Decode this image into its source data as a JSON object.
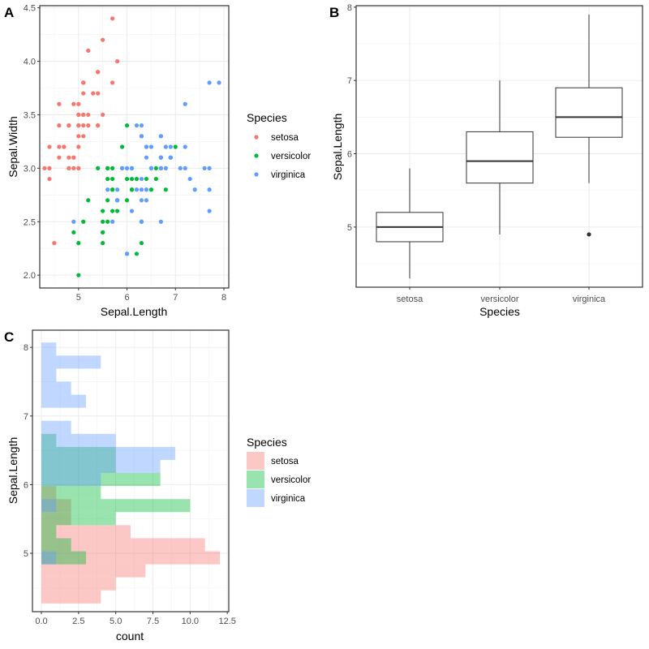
{
  "colors": {
    "setosa": "#F8766D",
    "versicolor": "#00BA38",
    "virginica": "#619CFF"
  },
  "chart_data": [
    {
      "panel": "A",
      "type": "scatter",
      "xlabel": "Sepal.Length",
      "ylabel": "Sepal.Width",
      "xlim": [
        4.2,
        8.1
      ],
      "ylim": [
        1.88,
        4.52
      ],
      "xticks": [
        5,
        6,
        7,
        8
      ],
      "yticks": [
        2.0,
        2.5,
        3.0,
        3.5,
        4.0,
        4.5
      ],
      "xtick_labels": [
        "5",
        "6",
        "7",
        "8"
      ],
      "ytick_labels": [
        "2.0",
        "2.5",
        "3.0",
        "3.5",
        "4.0",
        "4.5"
      ],
      "legend": {
        "title": "Species",
        "position": "right",
        "entries": [
          "setosa",
          "versicolor",
          "virginica"
        ]
      },
      "series": [
        {
          "name": "setosa",
          "points": [
            [
              5.1,
              3.5
            ],
            [
              4.9,
              3.0
            ],
            [
              4.7,
              3.2
            ],
            [
              4.6,
              3.1
            ],
            [
              5.0,
              3.6
            ],
            [
              5.4,
              3.9
            ],
            [
              4.6,
              3.4
            ],
            [
              5.0,
              3.4
            ],
            [
              4.4,
              2.9
            ],
            [
              4.9,
              3.1
            ],
            [
              5.4,
              3.7
            ],
            [
              4.8,
              3.4
            ],
            [
              4.8,
              3.0
            ],
            [
              4.3,
              3.0
            ],
            [
              5.8,
              4.0
            ],
            [
              5.7,
              4.4
            ],
            [
              5.4,
              3.9
            ],
            [
              5.1,
              3.5
            ],
            [
              5.7,
              3.8
            ],
            [
              5.1,
              3.8
            ],
            [
              5.4,
              3.4
            ],
            [
              5.1,
              3.7
            ],
            [
              4.6,
              3.6
            ],
            [
              5.1,
              3.3
            ],
            [
              4.8,
              3.4
            ],
            [
              5.0,
              3.0
            ],
            [
              5.0,
              3.4
            ],
            [
              5.2,
              3.5
            ],
            [
              5.2,
              3.4
            ],
            [
              4.7,
              3.2
            ],
            [
              4.8,
              3.1
            ],
            [
              5.4,
              3.4
            ],
            [
              5.2,
              4.1
            ],
            [
              5.5,
              4.2
            ],
            [
              4.9,
              3.1
            ],
            [
              5.0,
              3.2
            ],
            [
              5.5,
              3.5
            ],
            [
              4.9,
              3.6
            ],
            [
              4.4,
              3.0
            ],
            [
              5.1,
              3.4
            ],
            [
              5.0,
              3.5
            ],
            [
              4.5,
              2.3
            ],
            [
              4.4,
              3.2
            ],
            [
              5.0,
              3.5
            ],
            [
              5.1,
              3.8
            ],
            [
              4.8,
              3.0
            ],
            [
              5.1,
              3.8
            ],
            [
              4.6,
              3.2
            ],
            [
              5.3,
              3.7
            ],
            [
              5.0,
              3.3
            ]
          ]
        },
        {
          "name": "versicolor",
          "points": [
            [
              7.0,
              3.2
            ],
            [
              6.4,
              3.2
            ],
            [
              6.9,
              3.1
            ],
            [
              5.5,
              2.3
            ],
            [
              6.5,
              2.8
            ],
            [
              5.7,
              2.8
            ],
            [
              6.3,
              3.3
            ],
            [
              4.9,
              2.4
            ],
            [
              6.6,
              2.9
            ],
            [
              5.2,
              2.7
            ],
            [
              5.0,
              2.0
            ],
            [
              5.9,
              3.0
            ],
            [
              6.0,
              2.2
            ],
            [
              6.1,
              2.9
            ],
            [
              5.6,
              2.9
            ],
            [
              6.7,
              3.1
            ],
            [
              5.6,
              3.0
            ],
            [
              5.8,
              2.7
            ],
            [
              6.2,
              2.2
            ],
            [
              5.6,
              2.5
            ],
            [
              5.9,
              3.2
            ],
            [
              6.1,
              2.8
            ],
            [
              6.3,
              2.5
            ],
            [
              6.1,
              2.8
            ],
            [
              6.4,
              2.9
            ],
            [
              6.6,
              3.0
            ],
            [
              6.8,
              2.8
            ],
            [
              6.7,
              3.0
            ],
            [
              6.0,
              2.9
            ],
            [
              5.7,
              2.6
            ],
            [
              5.5,
              2.4
            ],
            [
              5.5,
              2.4
            ],
            [
              5.8,
              2.7
            ],
            [
              6.0,
              2.7
            ],
            [
              5.4,
              3.0
            ],
            [
              6.0,
              3.4
            ],
            [
              6.7,
              3.1
            ],
            [
              6.3,
              2.3
            ],
            [
              5.6,
              3.0
            ],
            [
              5.5,
              2.5
            ],
            [
              5.5,
              2.6
            ],
            [
              6.1,
              3.0
            ],
            [
              5.8,
              2.6
            ],
            [
              5.0,
              2.3
            ],
            [
              5.6,
              2.7
            ],
            [
              5.7,
              3.0
            ],
            [
              5.7,
              2.9
            ],
            [
              6.2,
              2.9
            ],
            [
              5.1,
              2.5
            ],
            [
              5.7,
              2.8
            ]
          ]
        },
        {
          "name": "virginica",
          "points": [
            [
              6.3,
              3.3
            ],
            [
              5.8,
              2.7
            ],
            [
              7.1,
              3.0
            ],
            [
              6.3,
              2.9
            ],
            [
              6.5,
              3.0
            ],
            [
              7.6,
              3.0
            ],
            [
              4.9,
              2.5
            ],
            [
              7.3,
              2.9
            ],
            [
              6.7,
              2.5
            ],
            [
              7.2,
              3.6
            ],
            [
              6.5,
              3.2
            ],
            [
              6.4,
              2.7
            ],
            [
              6.8,
              3.0
            ],
            [
              5.7,
              2.5
            ],
            [
              5.8,
              2.8
            ],
            [
              6.4,
              3.2
            ],
            [
              6.5,
              3.0
            ],
            [
              7.7,
              3.8
            ],
            [
              7.7,
              2.6
            ],
            [
              6.0,
              2.2
            ],
            [
              6.9,
              3.2
            ],
            [
              5.6,
              2.8
            ],
            [
              7.7,
              2.8
            ],
            [
              6.3,
              2.7
            ],
            [
              6.7,
              3.3
            ],
            [
              7.2,
              3.2
            ],
            [
              6.2,
              2.8
            ],
            [
              6.1,
              3.0
            ],
            [
              6.4,
              2.8
            ],
            [
              7.2,
              3.0
            ],
            [
              7.4,
              2.8
            ],
            [
              7.9,
              3.8
            ],
            [
              6.4,
              2.8
            ],
            [
              6.3,
              2.8
            ],
            [
              6.1,
              2.6
            ],
            [
              7.7,
              3.0
            ],
            [
              6.3,
              3.4
            ],
            [
              6.4,
              3.1
            ],
            [
              6.0,
              3.0
            ],
            [
              6.9,
              3.1
            ],
            [
              6.7,
              3.1
            ],
            [
              6.9,
              3.1
            ],
            [
              5.8,
              2.7
            ],
            [
              6.8,
              3.2
            ],
            [
              6.7,
              3.3
            ],
            [
              6.7,
              3.0
            ],
            [
              6.3,
              2.5
            ],
            [
              6.5,
              3.0
            ],
            [
              6.2,
              3.4
            ],
            [
              5.9,
              3.0
            ]
          ]
        }
      ]
    },
    {
      "panel": "B",
      "type": "box",
      "xlabel": "Species",
      "ylabel": "Sepal.Length",
      "ylim": [
        4.18,
        8.02
      ],
      "yticks": [
        5,
        6,
        7,
        8
      ],
      "ytick_labels": [
        "5",
        "6",
        "7",
        "8"
      ],
      "categories": [
        "setosa",
        "versicolor",
        "virginica"
      ],
      "boxes": [
        {
          "name": "setosa",
          "whisker_low": 4.3,
          "q1": 4.8,
          "median": 5.0,
          "q3": 5.2,
          "whisker_high": 5.8,
          "outliers": []
        },
        {
          "name": "versicolor",
          "whisker_low": 4.9,
          "q1": 5.6,
          "median": 5.9,
          "q3": 6.3,
          "whisker_high": 7.0,
          "outliers": []
        },
        {
          "name": "virginica",
          "whisker_low": 5.6,
          "q1": 6.225,
          "median": 6.5,
          "q3": 6.9,
          "whisker_high": 7.9,
          "outliers": [
            4.9
          ]
        }
      ]
    },
    {
      "panel": "C",
      "type": "bar",
      "orientation": "horizontal",
      "xlabel": "count",
      "ylabel": "Sepal.Length",
      "xlim": [
        -0.6,
        12.6
      ],
      "ylim": [
        4.15,
        8.25
      ],
      "xticks": [
        0,
        2.5,
        5,
        7.5,
        10,
        12.5
      ],
      "xtick_labels": [
        "0.0",
        "2.5",
        "5.0",
        "7.5",
        "10.0",
        "12.5"
      ],
      "yticks": [
        5,
        6,
        7,
        8
      ],
      "ytick_labels": [
        "5",
        "6",
        "7",
        "8"
      ],
      "bin_start": 4.27,
      "bin_width": 0.19,
      "legend": {
        "title": "Species",
        "position": "right",
        "entries": [
          "setosa",
          "versicolor",
          "virginica"
        ]
      },
      "series": [
        {
          "name": "setosa",
          "counts": [
            4,
            5,
            7,
            12,
            11,
            6,
            2,
            2,
            1,
            0,
            0,
            0,
            0,
            0,
            0,
            0,
            0,
            0,
            0,
            0
          ]
        },
        {
          "name": "versicolor",
          "counts": [
            0,
            0,
            0,
            3,
            2,
            1,
            5,
            10,
            4,
            8,
            5,
            5,
            1,
            0,
            0,
            0,
            0,
            0,
            0,
            0
          ]
        },
        {
          "name": "virginica",
          "counts": [
            0,
            0,
            0,
            1,
            0,
            0,
            0,
            1,
            0,
            4,
            8,
            9,
            5,
            2,
            0,
            3,
            2,
            1,
            4,
            1
          ]
        }
      ]
    }
  ]
}
